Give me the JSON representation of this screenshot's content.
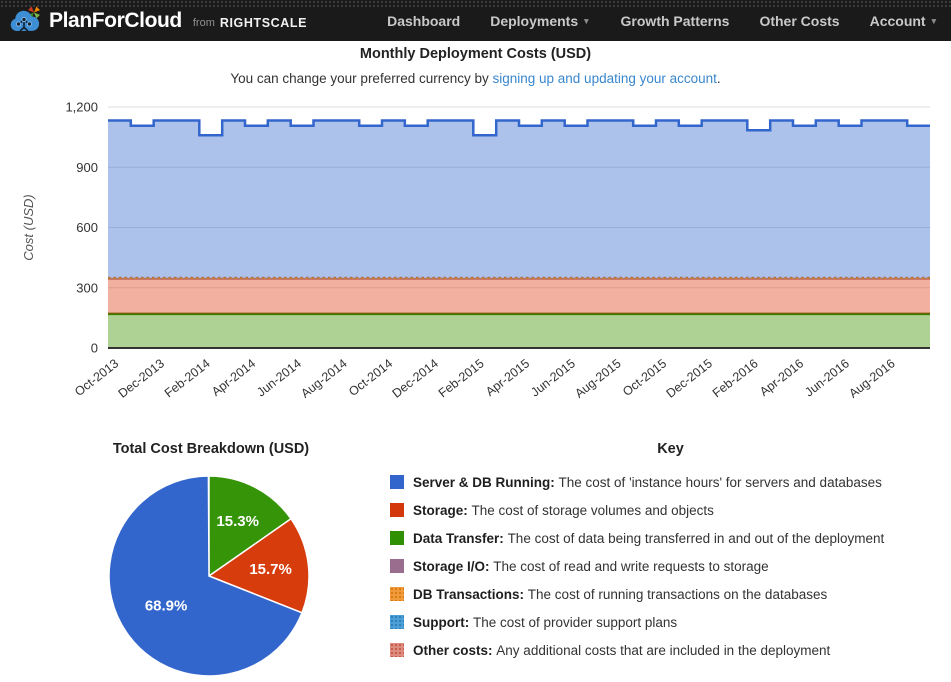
{
  "navbar": {
    "brand": "PlanForCloud",
    "brand_from": "from",
    "brand_rightscale": "RIGHTSCALE",
    "items": [
      {
        "label": "Dashboard",
        "dropdown": false
      },
      {
        "label": "Deployments",
        "dropdown": true
      },
      {
        "label": "Growth Patterns",
        "dropdown": false
      },
      {
        "label": "Other Costs",
        "dropdown": false
      },
      {
        "label": "Account",
        "dropdown": true
      }
    ]
  },
  "header": {
    "title": "Monthly Deployment Costs (USD)",
    "note_prefix": "You can change your preferred currency by ",
    "note_link": "signing up and updating your account",
    "note_suffix": "."
  },
  "chart_data": [
    {
      "type": "area",
      "title": "Monthly Deployment Costs (USD)",
      "ylabel": "Cost (USD)",
      "ylim": [
        0,
        1200
      ],
      "yticks": [
        0,
        300,
        600,
        900,
        1200
      ],
      "ytick_labels": [
        "0",
        "300",
        "600",
        "900",
        "1,200"
      ],
      "stacked": true,
      "interpolation": "step",
      "grid": true,
      "months": [
        "Oct-2013",
        "Nov-2013",
        "Dec-2013",
        "Jan-2014",
        "Feb-2014",
        "Mar-2014",
        "Apr-2014",
        "May-2014",
        "Jun-2014",
        "Jul-2014",
        "Aug-2014",
        "Sep-2014",
        "Oct-2014",
        "Nov-2014",
        "Dec-2014",
        "Jan-2015",
        "Feb-2015",
        "Mar-2015",
        "Apr-2015",
        "May-2015",
        "Jun-2015",
        "Jul-2015",
        "Aug-2015",
        "Sep-2015",
        "Oct-2015",
        "Nov-2015",
        "Dec-2015",
        "Jan-2016",
        "Feb-2016",
        "Mar-2016",
        "Apr-2016",
        "May-2016",
        "Jun-2016",
        "Jul-2016",
        "Aug-2016",
        "Sep-2016"
      ],
      "xtick_labels": [
        "Oct-2013",
        "Dec-2013",
        "Feb-2014",
        "Apr-2014",
        "Jun-2014",
        "Aug-2014",
        "Oct-2014",
        "Dec-2014",
        "Feb-2015",
        "Apr-2015",
        "Jun-2015",
        "Aug-2015",
        "Oct-2015",
        "Dec-2015",
        "Feb-2016",
        "Apr-2016",
        "Jun-2016",
        "Aug-2016"
      ],
      "series": [
        {
          "name": "Data Transfer",
          "color": "#3a7c00",
          "fill": "rgba(61,148,0,0.42)",
          "line_width": 2.5,
          "dotted": false,
          "values": [
            170,
            170,
            170,
            170,
            170,
            170,
            170,
            170,
            170,
            170,
            170,
            170,
            170,
            170,
            170,
            170,
            170,
            170,
            170,
            170,
            170,
            170,
            170,
            170,
            170,
            170,
            170,
            170,
            170,
            170,
            170,
            170,
            170,
            170,
            170,
            170
          ]
        },
        {
          "name": "Storage",
          "color": "#a53310",
          "fill": "rgba(220,57,18,0.40)",
          "line_width": 1.6,
          "dotted": false,
          "values": [
            175,
            175,
            175,
            175,
            175,
            175,
            175,
            175,
            175,
            175,
            175,
            175,
            175,
            175,
            175,
            175,
            175,
            175,
            175,
            175,
            175,
            175,
            175,
            175,
            175,
            175,
            175,
            175,
            175,
            175,
            175,
            175,
            175,
            175,
            175,
            175
          ]
        },
        {
          "name": "Storage I/O",
          "color": "#9a6d8e",
          "fill": "rgba(153,0,153,0.25)",
          "line_width": 1.2,
          "dotted": false,
          "values": [
            1,
            1,
            1,
            1,
            1,
            1,
            1,
            1,
            1,
            1,
            1,
            1,
            1,
            1,
            1,
            1,
            1,
            1,
            1,
            1,
            1,
            1,
            1,
            1,
            1,
            1,
            1,
            1,
            1,
            1,
            1,
            1,
            1,
            1,
            1,
            1
          ]
        },
        {
          "name": "DB Transactions",
          "color": "#e27e0a",
          "fill": "rgba(255,153,0,0.45)",
          "line_width": 2,
          "dotted": true,
          "values": [
            4,
            4,
            4,
            4,
            4,
            4,
            4,
            4,
            4,
            4,
            4,
            4,
            4,
            4,
            4,
            4,
            4,
            4,
            4,
            4,
            4,
            4,
            4,
            4,
            4,
            4,
            4,
            4,
            4,
            4,
            4,
            4,
            4,
            4,
            4,
            4
          ]
        },
        {
          "name": "Server & DB Running",
          "color": "#3366cc",
          "fill": "rgba(51,102,204,0.40)",
          "line_width": 2.5,
          "dotted": false,
          "values": [
            783,
            757,
            783,
            783,
            709,
            783,
            757,
            783,
            757,
            783,
            783,
            757,
            783,
            757,
            783,
            783,
            709,
            783,
            757,
            783,
            757,
            783,
            783,
            757,
            783,
            757,
            783,
            783,
            734,
            783,
            757,
            783,
            757,
            783,
            783,
            757
          ]
        }
      ]
    },
    {
      "type": "pie",
      "title": "Total Cost Breakdown (USD)",
      "start_angle": "top",
      "direction": "clockwise",
      "label_color": "#ffffff",
      "slices": [
        {
          "label": "Data Transfer",
          "pct": 15.3,
          "color": "#359408"
        },
        {
          "label": "Storage",
          "pct": 15.7,
          "color": "#d63c0c"
        },
        {
          "label": "Server & DB Running",
          "pct": 68.9,
          "color": "#3366cc"
        }
      ]
    }
  ],
  "pie_section": {
    "title": "Total Cost Breakdown (USD)"
  },
  "key": {
    "title": "Key",
    "items": [
      {
        "term": "Server & DB Running:",
        "desc": " The cost of 'instance hours' for servers and databases",
        "swatch": "solid",
        "color": "#3366cc",
        "dot_color": ""
      },
      {
        "term": "Storage:",
        "desc": " The cost of storage volumes and objects",
        "swatch": "solid",
        "color": "#d2380c",
        "dot_color": ""
      },
      {
        "term": "Data Transfer:",
        "desc": " The cost of data being transferred in and out of the deployment",
        "swatch": "solid",
        "color": "#2e9002",
        "dot_color": ""
      },
      {
        "term": "Storage I/O:",
        "desc": " The cost of read and write requests to storage",
        "swatch": "solid",
        "color": "#9a6d8e",
        "dot_color": ""
      },
      {
        "term": "DB Transactions:",
        "desc": " The cost of running transactions on the databases",
        "swatch": "dotted",
        "color": "#f09b3d",
        "dot_color": "#d87a0d"
      },
      {
        "term": "Support:",
        "desc": " The cost of provider support plans",
        "swatch": "dotted",
        "color": "#4d9fd8",
        "dot_color": "#2d7fb8"
      },
      {
        "term": "Other costs:",
        "desc": " Any additional costs that are included in the deployment",
        "swatch": "dotted",
        "color": "#dd8d80",
        "dot_color": "#c75948"
      }
    ]
  }
}
